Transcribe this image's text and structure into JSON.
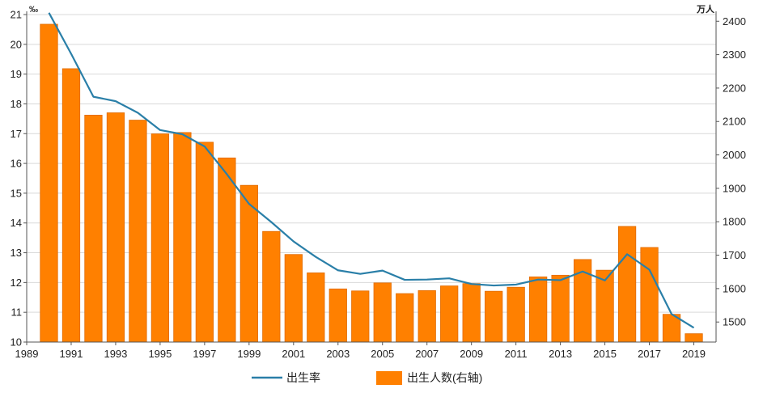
{
  "chart_data": {
    "type": "bar+line",
    "title": "",
    "left_axis": {
      "unit": "‰",
      "min": 10,
      "max": 21,
      "ticks": [
        10,
        11,
        12,
        13,
        14,
        15,
        16,
        17,
        18,
        19,
        20,
        21
      ]
    },
    "right_axis": {
      "unit": "万人",
      "min": 1440,
      "max": 2420,
      "ticks": [
        1500,
        1600,
        1700,
        1800,
        1900,
        2000,
        2100,
        2200,
        2300,
        2400
      ]
    },
    "x_axis": {
      "min": 1989,
      "max": 2020,
      "ticks": [
        1989,
        1991,
        1993,
        1995,
        1997,
        1999,
        2001,
        2003,
        2005,
        2007,
        2009,
        2011,
        2013,
        2015,
        2017,
        2019
      ]
    },
    "years": [
      1990,
      1991,
      1992,
      1993,
      1994,
      1995,
      1996,
      1997,
      1998,
      1999,
      2000,
      2001,
      2002,
      2003,
      2004,
      2005,
      2006,
      2007,
      2008,
      2009,
      2010,
      2011,
      2012,
      2013,
      2014,
      2015,
      2016,
      2017,
      2018,
      2019
    ],
    "series": [
      {
        "name": "出生人数(右轴)",
        "type": "bar",
        "axis": "right",
        "color": "#ff8000",
        "values": [
          2391,
          2258,
          2119,
          2126,
          2104,
          2063,
          2067,
          2038,
          1991,
          1909,
          1771,
          1702,
          1647,
          1599,
          1593,
          1617,
          1585,
          1594,
          1608,
          1615,
          1592,
          1604,
          1635,
          1640,
          1687,
          1655,
          1786,
          1723,
          1523,
          1465
        ]
      },
      {
        "name": "出生率",
        "type": "line",
        "axis": "left",
        "color": "#2a7fa8",
        "values": [
          21.06,
          19.68,
          18.24,
          18.09,
          17.7,
          17.12,
          16.98,
          16.57,
          15.64,
          14.64,
          14.03,
          13.38,
          12.86,
          12.41,
          12.29,
          12.4,
          12.09,
          12.1,
          12.14,
          11.95,
          11.9,
          11.93,
          12.1,
          12.08,
          12.37,
          12.07,
          12.95,
          12.43,
          10.94,
          10.48
        ]
      }
    ],
    "legend": {
      "placement": "bottom"
    }
  },
  "style": {
    "bar_color": "#ff8000",
    "bar_edge": "#e06a00",
    "line_color": "#2a7fa8",
    "grid_color": "#d9d9d9",
    "axis_color": "#555555"
  }
}
